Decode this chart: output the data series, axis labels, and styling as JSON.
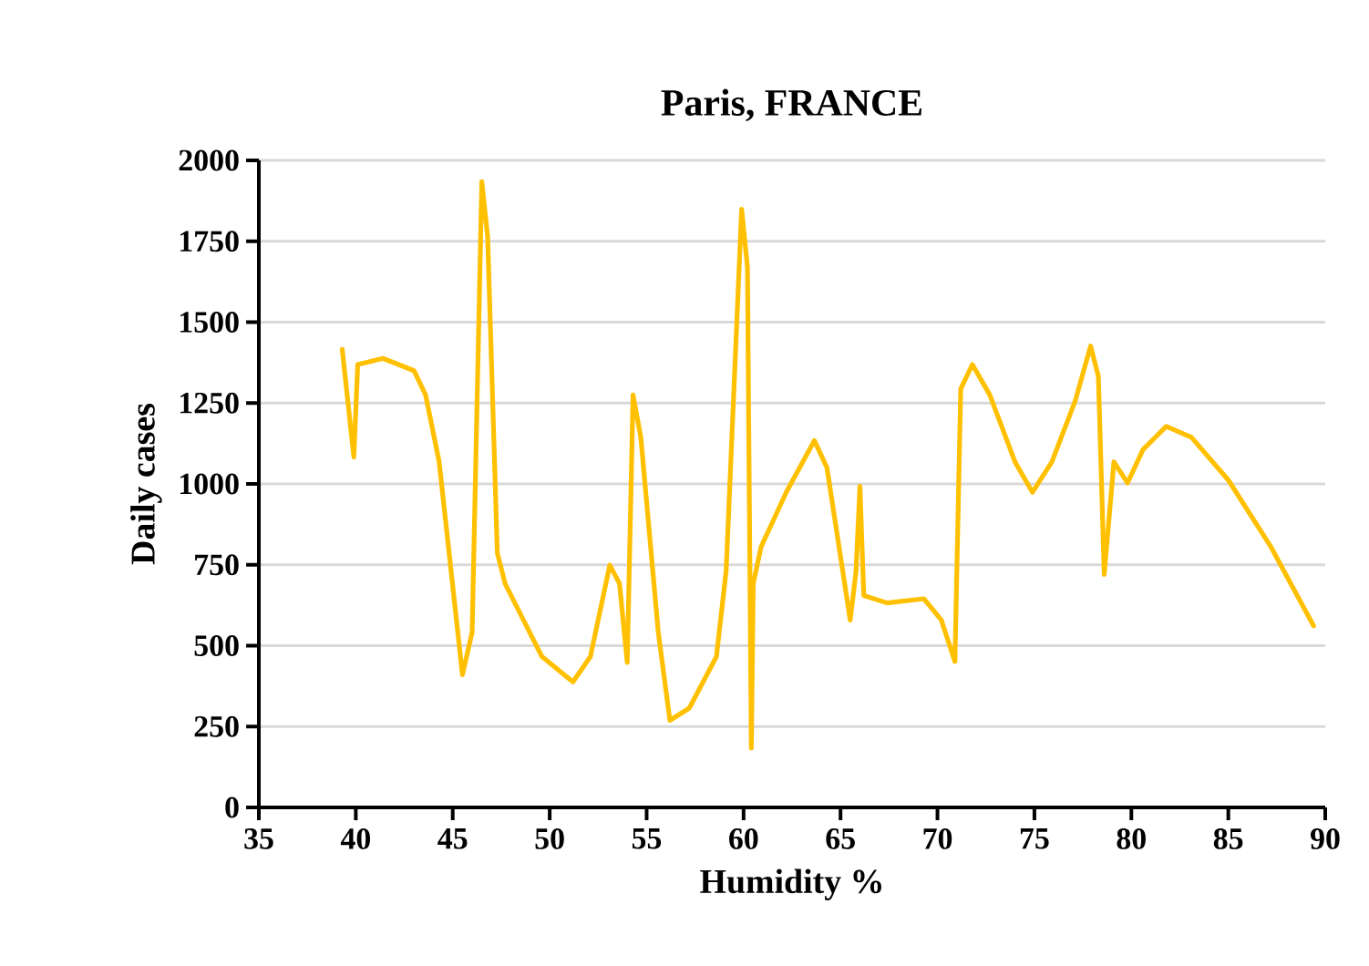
{
  "chart_data": {
    "type": "line",
    "title": "Paris, FRANCE",
    "xlabel": "Humidity %",
    "ylabel": "Daily cases",
    "xlim": [
      35,
      90
    ],
    "xticks": [
      35,
      40,
      45,
      50,
      55,
      60,
      65,
      70,
      75,
      80,
      85,
      90
    ],
    "ylim": [
      0,
      2000
    ],
    "yticks": [
      0,
      250,
      500,
      750,
      1000,
      1250,
      1500,
      1750,
      2000
    ],
    "grid": "y",
    "legend": false,
    "marker": "none",
    "line_style": "solid",
    "series": [
      {
        "color": "#ffc000",
        "x": [
          39.3,
          39.9,
          40.1,
          41.4,
          43.0,
          43.6,
          44.3,
          45.5,
          46.0,
          46.5,
          46.8,
          47.3,
          47.7,
          49.6,
          51.2,
          52.1,
          53.1,
          53.6,
          54.0,
          54.3,
          54.7,
          55.6,
          56.2,
          57.2,
          58.6,
          59.1,
          59.9,
          60.2,
          60.4,
          60.5,
          60.9,
          62.2,
          63.65,
          64.3,
          65.5,
          65.8,
          66.0,
          66.2,
          67.4,
          69.3,
          70.2,
          70.9,
          71.2,
          71.8,
          72.7,
          74.0,
          74.9,
          75.9,
          77.1,
          77.9,
          78.3,
          78.6,
          79.1,
          79.8,
          80.6,
          81.8,
          83.1,
          85.0,
          87.2,
          89.4
        ],
        "values": [
          1416,
          1083,
          1369,
          1388,
          1350,
          1275,
          1068,
          410,
          542,
          1934,
          1764,
          786,
          692,
          466,
          388,
          466,
          749,
          692,
          448,
          1275,
          1144,
          542,
          269,
          307,
          466,
          730,
          1849,
          1670,
          184,
          692,
          805,
          974,
          1134,
          1050,
          579,
          730,
          993,
          655,
          632,
          645,
          579,
          451,
          1294,
          1369,
          1275,
          1068,
          974,
          1068,
          1256,
          1426,
          1332,
          720,
          1068,
          1003,
          1106,
          1178,
          1144,
          1012,
          805,
          561
        ]
      }
    ]
  }
}
